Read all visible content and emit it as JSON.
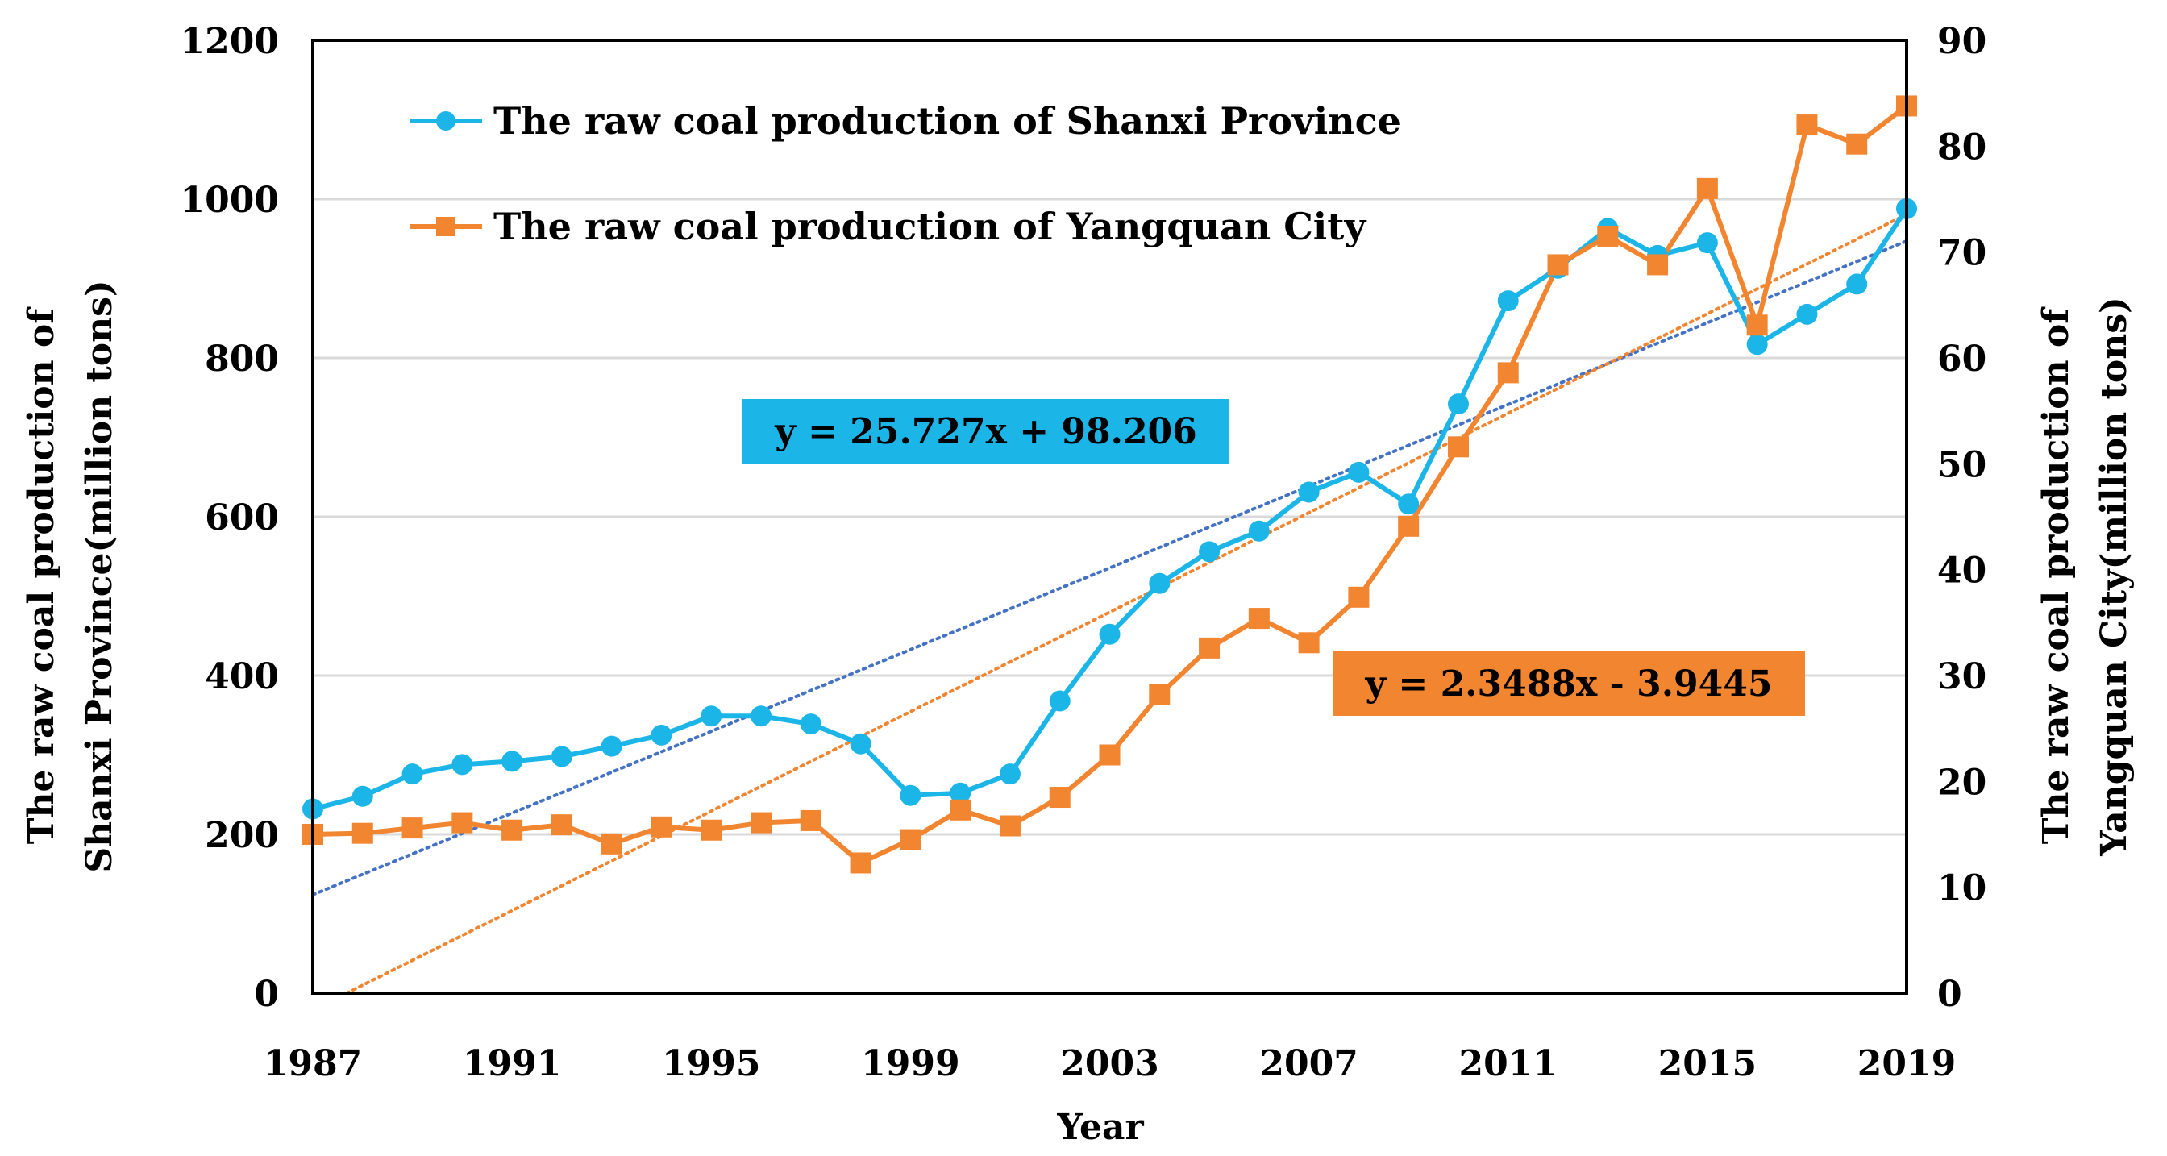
{
  "chart_data": {
    "type": "line",
    "x": [
      1987,
      1988,
      1989,
      1990,
      1991,
      1992,
      1993,
      1994,
      1995,
      1996,
      1997,
      1998,
      1999,
      2000,
      2001,
      2002,
      2003,
      2004,
      2005,
      2006,
      2007,
      2008,
      2009,
      2010,
      2011,
      2012,
      2013,
      2014,
      2015,
      2016,
      2017,
      2018,
      2019
    ],
    "xticks": [
      "1987",
      "1991",
      "1995",
      "1999",
      "2003",
      "2007",
      "2011",
      "2015",
      "2019"
    ],
    "xlabel": "Year",
    "ylabel_left": [
      "The raw coal production of",
      "Shanxi Province(million tons)"
    ],
    "ylabel_right": [
      "The raw coal production of",
      "Yangquan City(million tons)"
    ],
    "ylim_left": [
      0,
      1200
    ],
    "ylim_right": [
      0,
      90
    ],
    "yticks_left": [
      "0",
      "200",
      "400",
      "600",
      "800",
      "1000",
      "1200"
    ],
    "yticks_right": [
      "0",
      "10",
      "20",
      "30",
      "40",
      "50",
      "60",
      "70",
      "80",
      "90"
    ],
    "grid": true,
    "series": [
      {
        "name": "The raw coal production of Shanxi Province",
        "axis": "left",
        "marker": "circle",
        "color": "#1CB5E8",
        "values": [
          232,
          248,
          276,
          288,
          292,
          298,
          311,
          325,
          349,
          349,
          339,
          314,
          249,
          252,
          276,
          368,
          452,
          516,
          556,
          582,
          631,
          656,
          616,
          742,
          872,
          913,
          963,
          929,
          945,
          817,
          855,
          893,
          988
        ]
      },
      {
        "name": "The raw coal production of Yangquan City",
        "axis": "right",
        "marker": "square",
        "color": "#F28530",
        "values": [
          15.0,
          15.1,
          15.6,
          16.1,
          15.4,
          15.9,
          14.1,
          15.7,
          15.4,
          16.1,
          16.3,
          12.3,
          14.5,
          17.3,
          15.8,
          18.5,
          22.5,
          28.2,
          32.6,
          35.4,
          33.1,
          37.4,
          44.1,
          51.6,
          58.6,
          68.8,
          71.5,
          68.8,
          76.0,
          63.1,
          82.0,
          80.2,
          83.8
        ]
      }
    ],
    "trendlines": [
      {
        "series": "The raw coal production of Shanxi Province",
        "equation": "y = 25.727x + 98.206",
        "slope": 25.727,
        "intercept": 98.206,
        "color": "#4472C4",
        "label_bg": "#1CB5E8"
      },
      {
        "series": "The raw coal production of Yangquan City",
        "equation": "y = 2.3488x - 3.9445",
        "slope": 2.3488,
        "intercept": -3.9445,
        "color": "#F28530",
        "label_bg": "#F28530"
      }
    ],
    "legend_position": "top-left"
  }
}
